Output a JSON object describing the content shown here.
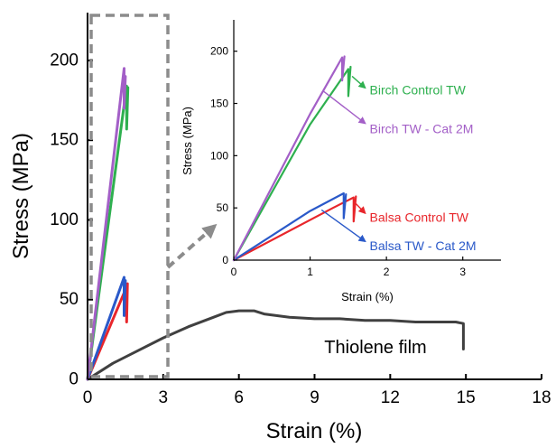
{
  "chart_data": [
    {
      "type": "line",
      "xlabel": "Strain (%)",
      "ylabel": "Stress (MPa)",
      "xlim": [
        0,
        18
      ],
      "ylim": [
        0,
        230
      ],
      "x_ticks": [
        0,
        3,
        6,
        9,
        12,
        15,
        18
      ],
      "y_ticks": [
        0,
        50,
        100,
        150,
        200
      ],
      "grid": false,
      "series": [
        {
          "name": "Thiolene film",
          "color": "#404040",
          "points": [
            [
              0,
              0
            ],
            [
              0.5,
              5
            ],
            [
              1,
              10
            ],
            [
              2,
              18
            ],
            [
              3,
              26
            ],
            [
              4,
              33
            ],
            [
              5,
              39
            ],
            [
              5.5,
              42
            ],
            [
              6,
              43
            ],
            [
              6.6,
              43
            ],
            [
              7,
              41
            ],
            [
              8,
              39
            ],
            [
              9,
              38
            ],
            [
              10,
              38
            ],
            [
              11,
              37
            ],
            [
              12,
              37
            ],
            [
              13,
              36
            ],
            [
              14,
              36
            ],
            [
              14.6,
              36
            ],
            [
              14.9,
              35
            ],
            [
              14.9,
              19
            ]
          ]
        },
        {
          "name": "Balsa Control TW",
          "color": "#e8262b",
          "points": [
            [
              0,
              0
            ],
            [
              1.55,
              58
            ],
            [
              1.55,
              36
            ],
            [
              1.58,
              60
            ]
          ]
        },
        {
          "name": "Balsa TW - Cat 2M",
          "color": "#2a59c9",
          "points": [
            [
              0,
              0
            ],
            [
              1.45,
              64
            ],
            [
              1.45,
              40
            ],
            [
              1.5,
              62
            ]
          ]
        },
        {
          "name": "Birch Control TW",
          "color": "#2eb04f",
          "points": [
            [
              0,
              0
            ],
            [
              1.55,
              184
            ],
            [
              1.55,
              157
            ],
            [
              1.6,
              183
            ]
          ]
        },
        {
          "name": "Birch TW - Cat 2M",
          "color": "#a35fc7",
          "points": [
            [
              0,
              0
            ],
            [
              1.45,
              195
            ],
            [
              1.45,
              170
            ],
            [
              1.5,
              190
            ]
          ]
        }
      ]
    },
    {
      "type": "line",
      "xlabel": "Strain (%)",
      "ylabel": "Stress (MPa)",
      "xlim": [
        0,
        3.5
      ],
      "ylim": [
        0,
        230
      ],
      "x_ticks": [
        0,
        1,
        2,
        3
      ],
      "y_ticks": [
        0,
        50,
        100,
        150,
        200
      ],
      "grid": false,
      "series": [
        {
          "name": "Balsa Control TW",
          "color": "#e8262b",
          "points": [
            [
              0,
              0
            ],
            [
              1.3,
              50
            ],
            [
              1.57,
              60
            ],
            [
              1.57,
              37
            ],
            [
              1.6,
              61
            ]
          ]
        },
        {
          "name": "Balsa TW - Cat 2M",
          "color": "#2a59c9",
          "points": [
            [
              0,
              0
            ],
            [
              1.0,
              47
            ],
            [
              1.44,
              64
            ],
            [
              1.44,
              40
            ],
            [
              1.47,
              63
            ]
          ]
        },
        {
          "name": "Birch Control TW",
          "color": "#2eb04f",
          "points": [
            [
              0,
              0
            ],
            [
              1.0,
              130
            ],
            [
              1.5,
              183
            ],
            [
              1.5,
              157
            ],
            [
              1.53,
              185
            ]
          ]
        },
        {
          "name": "Birch TW - Cat 2M",
          "color": "#a35fc7",
          "points": [
            [
              0,
              0
            ],
            [
              1.0,
              140
            ],
            [
              1.42,
              194
            ],
            [
              1.42,
              172
            ],
            [
              1.45,
              195
            ]
          ]
        }
      ],
      "annotations": [
        {
          "text": "Birch Control TW",
          "color": "#2eb04f",
          "text_at": [
            1.78,
            163
          ],
          "arrow_from": [
            1.72,
            165
          ],
          "arrow_to": [
            1.55,
            176
          ]
        },
        {
          "text": "Birch TW - Cat 2M",
          "color": "#a35fc7",
          "text_at": [
            1.78,
            126
          ],
          "arrow_from": [
            1.72,
            131
          ],
          "arrow_to": [
            1.17,
            162
          ]
        },
        {
          "text": "Balsa Control TW",
          "color": "#e8262b",
          "text_at": [
            1.78,
            41
          ],
          "arrow_from": [
            1.72,
            45
          ],
          "arrow_to": [
            1.6,
            54
          ]
        },
        {
          "text": "Balsa TW - Cat 2M",
          "color": "#2a59c9",
          "text_at": [
            1.78,
            14
          ],
          "arrow_from": [
            1.72,
            18
          ],
          "arrow_to": [
            1.15,
            48
          ]
        }
      ]
    }
  ],
  "labels": {
    "thiolene": "Thiolene film"
  }
}
